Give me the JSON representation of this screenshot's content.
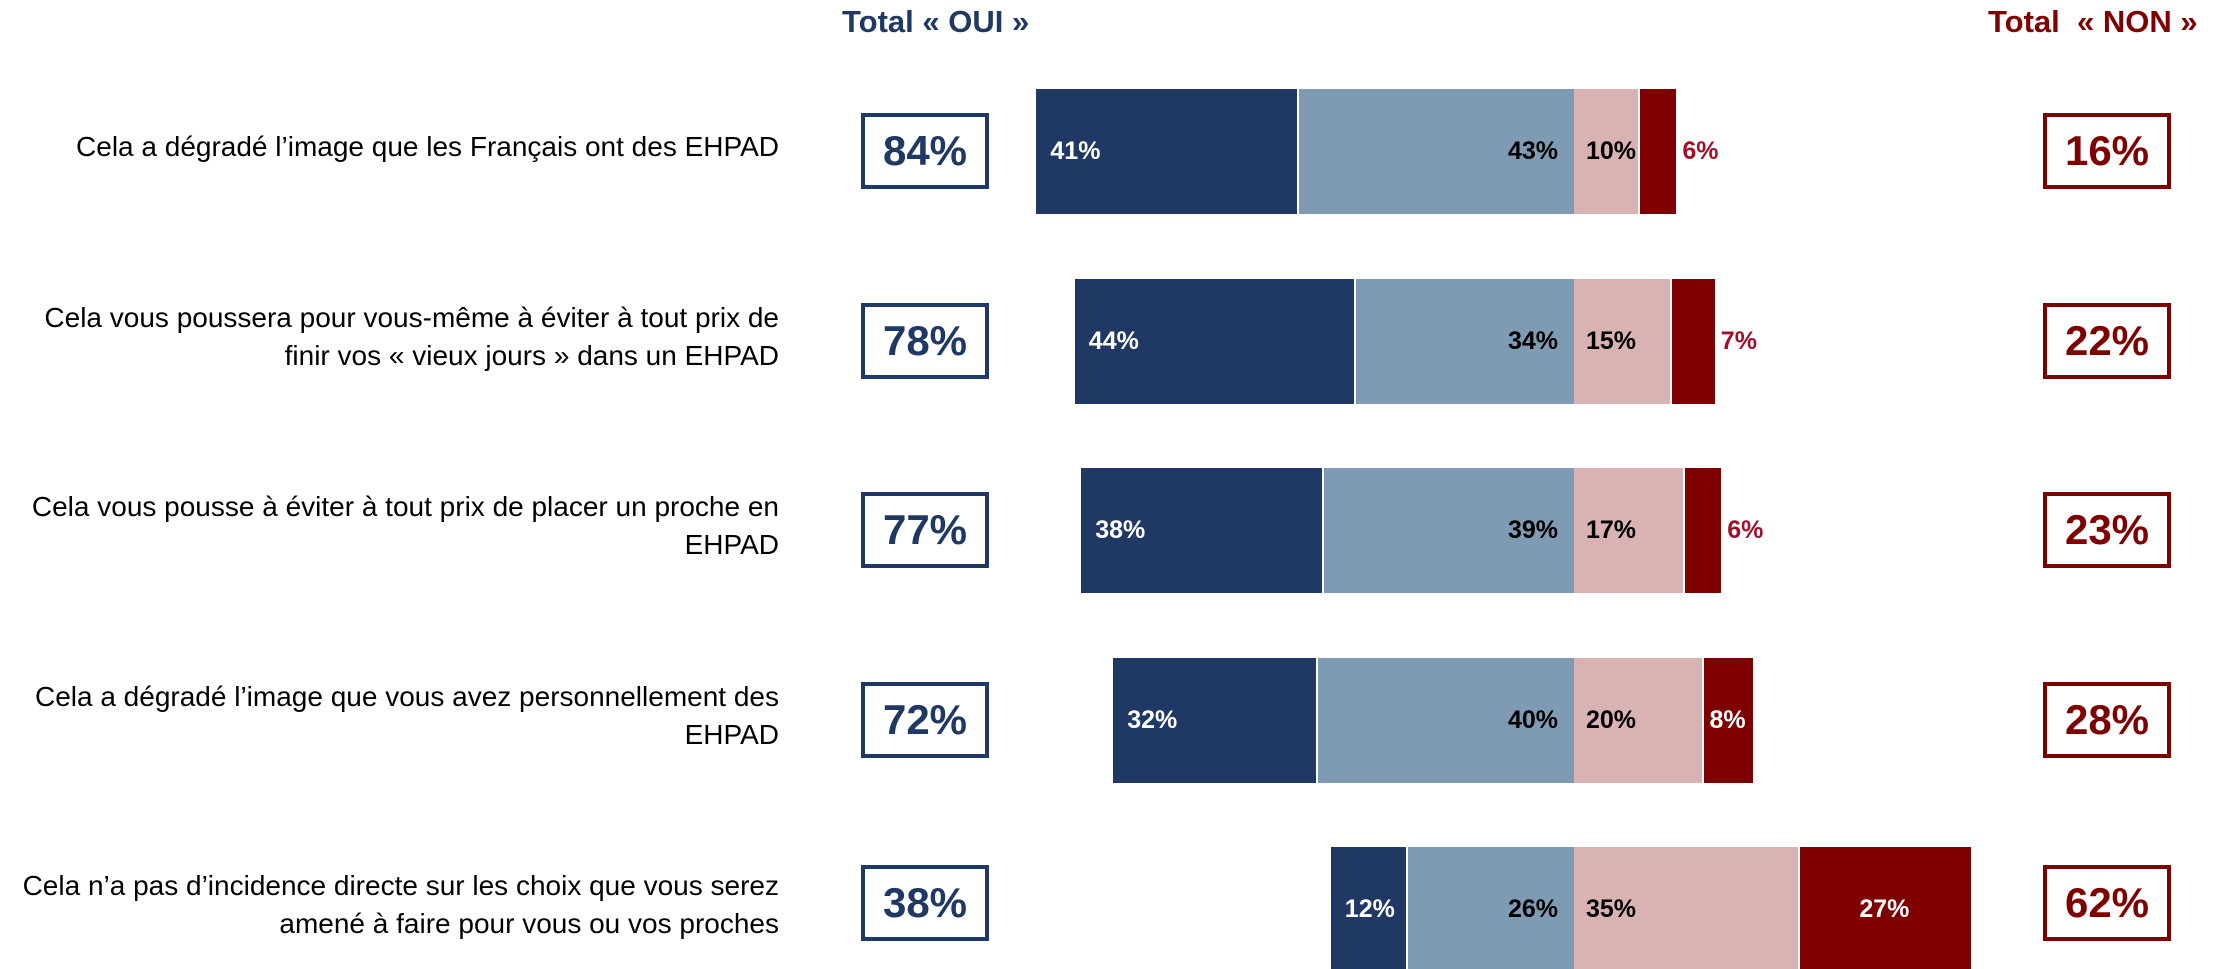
{
  "chart_data": {
    "type": "diverging_bar",
    "yes_title": "Total « OUI »",
    "no_title": "Total  « NON »",
    "categories": [
      "Cela a dégradé l’image que les Français ont des EHPAD",
      "Cela vous poussera pour vous-même à éviter à tout prix de finir vos « vieux jours » dans un EHPAD",
      "Cela vous pousse à éviter à tout prix de placer un proche en EHPAD",
      "Cela a dégradé l’image que vous avez personnellement des EHPAD",
      "Cela n’a pas d’incidence directe sur les choix que vous serez amené à faire pour vous ou vos proches"
    ],
    "series": [
      {
        "color": "#203864",
        "values": [
          41,
          44,
          38,
          32,
          12
        ],
        "value_labels": [
          "41%",
          "44%",
          "38%",
          "32%",
          "12%"
        ]
      },
      {
        "color": "#7f9bb4",
        "values": [
          43,
          34,
          39,
          40,
          26
        ],
        "value_labels": [
          "43%",
          "34%",
          "39%",
          "40%",
          "26%"
        ]
      },
      {
        "color": "#d9b2b4",
        "values": [
          10,
          15,
          17,
          20,
          35
        ],
        "value_labels": [
          "10%",
          "15%",
          "17%",
          "20%",
          "35%"
        ]
      },
      {
        "color": "#7f0000",
        "values": [
          6,
          7,
          6,
          8,
          27
        ],
        "value_labels": [
          "6%",
          "7%",
          "6%",
          "8%",
          "27%"
        ]
      }
    ],
    "yes_totals": {
      "color": "#203864",
      "values": [
        84,
        78,
        77,
        72,
        38
      ],
      "value_labels": [
        "84%",
        "78%",
        "77%",
        "72%",
        "38%"
      ]
    },
    "no_totals": {
      "color": "#7f0000",
      "values": [
        16,
        22,
        23,
        28,
        62
      ],
      "value_labels": [
        "16%",
        "22%",
        "23%",
        "28%",
        "62%"
      ]
    }
  }
}
